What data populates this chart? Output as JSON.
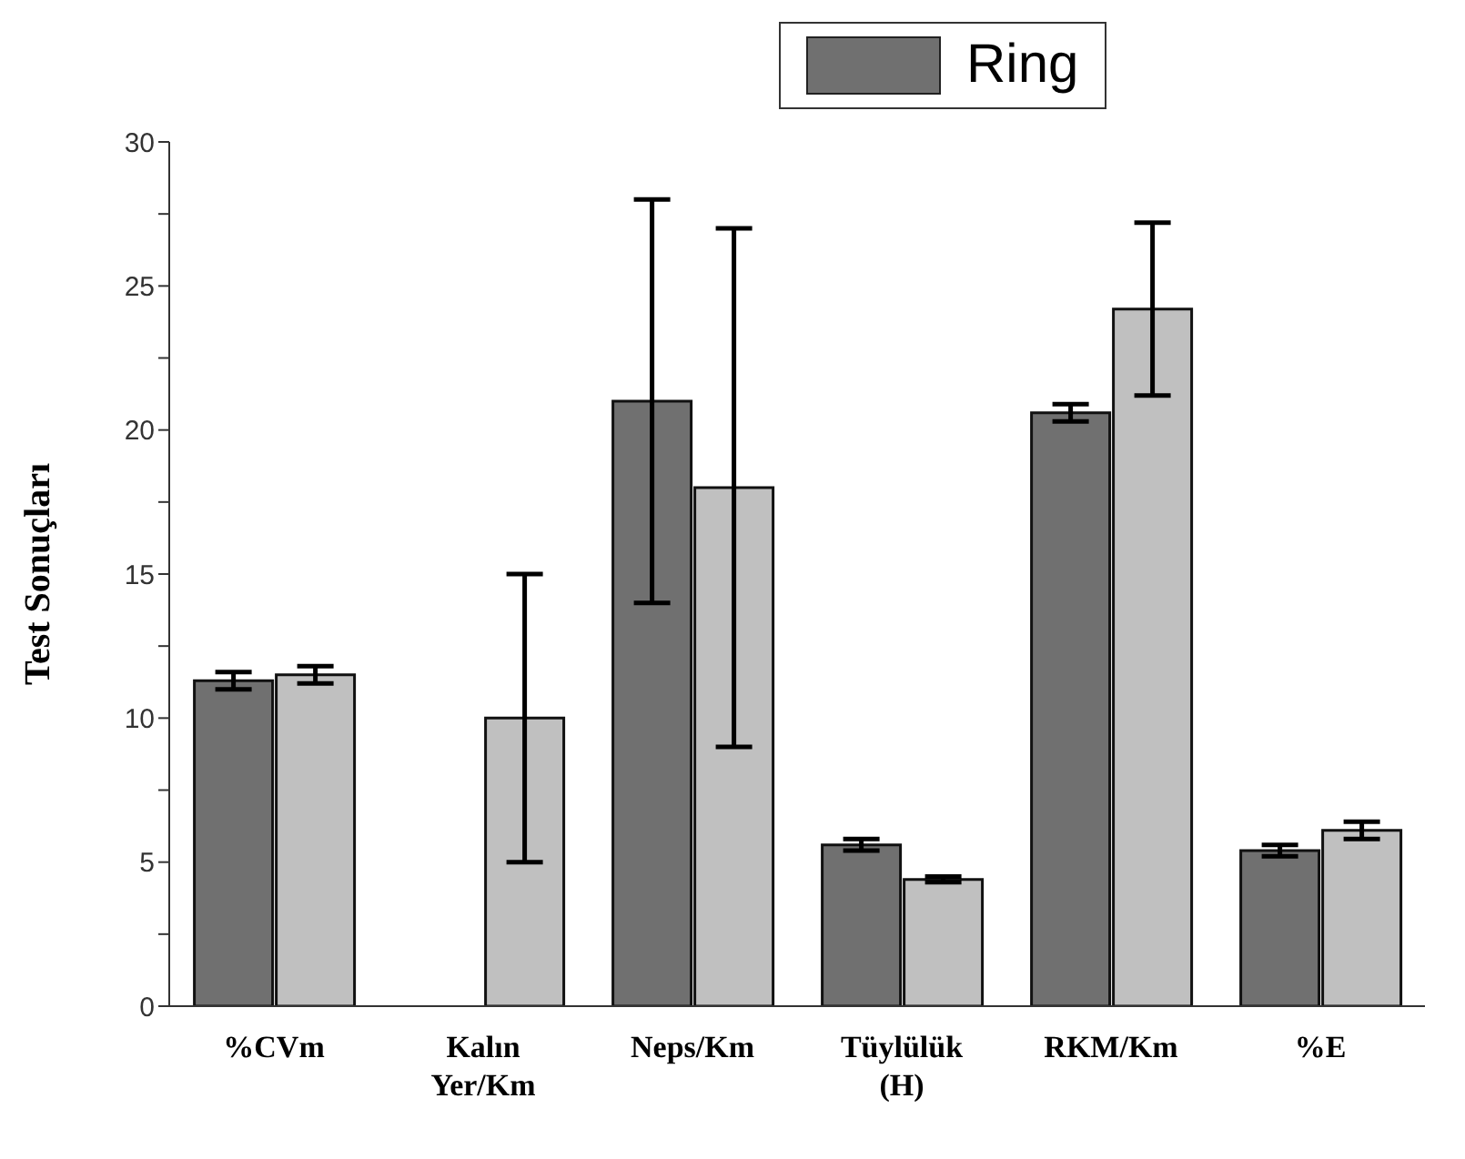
{
  "chart_data": {
    "type": "bar",
    "ylabel": "Test Sonuçları",
    "categories": [
      "%CVm",
      "Kalın Yer/Km",
      "Neps/Km",
      "Tüylülük (H)",
      "RKM/Km",
      "%E"
    ],
    "series": [
      {
        "name": "Ring",
        "color": "#707070",
        "values": [
          11.3,
          null,
          21,
          5.6,
          20.6,
          5.4
        ],
        "errors": [
          0.3,
          null,
          7,
          0.2,
          0.3,
          0.2
        ]
      },
      {
        "color": "#c0c0c0",
        "values": [
          11.5,
          10,
          18,
          4.4,
          24.2,
          6.1
        ],
        "errors": [
          0.3,
          5,
          9,
          0.1,
          3,
          0.3
        ]
      }
    ],
    "ylim": [
      0,
      30
    ],
    "yticks": [
      0,
      {
        "value": 2.5,
        "label": null
      },
      5,
      {
        "value": 7.5,
        "label": null
      },
      10,
      {
        "value": 12.5,
        "label": null
      },
      15,
      {
        "value": 17.5,
        "label": null
      },
      20,
      {
        "value": 22.5,
        "label": null
      },
      25,
      {
        "value": 27.5,
        "label": null
      },
      30
    ],
    "grid": false,
    "legend": "top right"
  }
}
